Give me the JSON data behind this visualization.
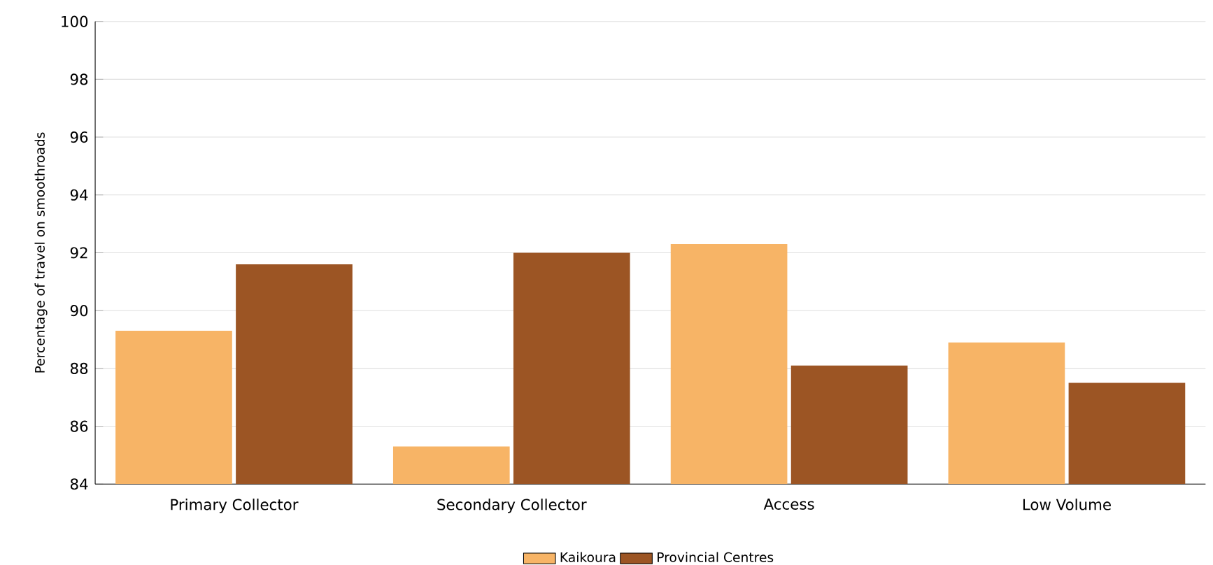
{
  "chart_data": {
    "type": "bar",
    "ylabel": "Percentage of travel on smoothroads",
    "categories": [
      "Primary Collector",
      "Secondary Collector",
      "Access",
      "Low Volume"
    ],
    "series": [
      {
        "name": "Kaikoura",
        "color": "#f7b466",
        "values": [
          89.3,
          85.3,
          92.3,
          88.9
        ]
      },
      {
        "name": "Provincial Centres",
        "color": "#9c5524",
        "values": [
          91.6,
          92.0,
          88.1,
          87.5
        ]
      }
    ],
    "ylim": [
      84,
      100
    ],
    "yticks": [
      84,
      86,
      88,
      90,
      92,
      94,
      96,
      98,
      100
    ],
    "grid": "y",
    "legend": "bottom"
  }
}
